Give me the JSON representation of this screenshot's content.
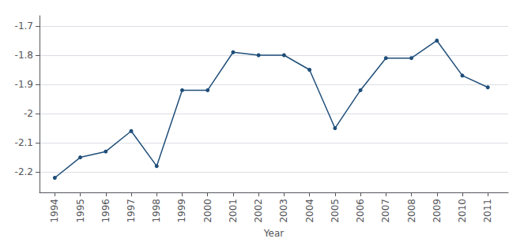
{
  "chart_data": {
    "type": "line",
    "xlabel": "Year",
    "x": [
      1994,
      1995,
      1996,
      1997,
      1998,
      1999,
      2000,
      2001,
      2002,
      2003,
      2004,
      2005,
      2006,
      2007,
      2008,
      2009,
      2010,
      2011
    ],
    "values": [
      -2.22,
      -2.15,
      -2.13,
      -2.06,
      -2.18,
      -1.92,
      -1.92,
      -1.79,
      -1.8,
      -1.8,
      -1.85,
      -2.05,
      -1.92,
      -1.81,
      -1.81,
      -1.75,
      -1.87,
      -1.91
    ],
    "xlim": [
      1993.4,
      2011.8
    ],
    "xticks": [
      1994,
      1995,
      1996,
      1997,
      1998,
      1999,
      2000,
      2001,
      2002,
      2003,
      2004,
      2005,
      2006,
      2007,
      2008,
      2009,
      2010,
      2011
    ],
    "ylim": [
      -2.27,
      -1.665
    ],
    "yticks": [
      -2.2,
      -2.1,
      -2,
      -1.9,
      -1.8,
      -1.7
    ],
    "color": "#1f4e79",
    "marker": "circle",
    "grid": true
  }
}
